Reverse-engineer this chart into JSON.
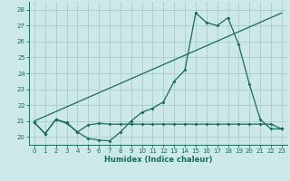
{
  "xlabel": "Humidex (Indice chaleur)",
  "xlim": [
    -0.5,
    23.5
  ],
  "ylim": [
    19.5,
    28.5
  ],
  "yticks": [
    20,
    21,
    22,
    23,
    24,
    25,
    26,
    27,
    28
  ],
  "xticks": [
    0,
    1,
    2,
    3,
    4,
    5,
    6,
    7,
    8,
    9,
    10,
    11,
    12,
    13,
    14,
    15,
    16,
    17,
    18,
    19,
    20,
    21,
    22,
    23
  ],
  "bg_color": "#cce8e8",
  "grid_color": "#aacccc",
  "line_color": "#1a6b5a",
  "line1_x": [
    0,
    1,
    2,
    3,
    4,
    5,
    6,
    7,
    8,
    9,
    10,
    11,
    12,
    13,
    14,
    15,
    16,
    17,
    18,
    19,
    20,
    21,
    22,
    23
  ],
  "line1_y": [
    20.9,
    20.2,
    21.1,
    20.9,
    20.3,
    19.9,
    19.8,
    19.75,
    20.3,
    21.0,
    21.55,
    21.8,
    22.2,
    23.5,
    24.2,
    27.8,
    27.2,
    27.0,
    27.5,
    25.8,
    23.3,
    21.1,
    20.5,
    20.5
  ],
  "line2_x": [
    0,
    1,
    2,
    3,
    4,
    5,
    6,
    7,
    8,
    9,
    10,
    11,
    12,
    13,
    14,
    15,
    16,
    17,
    18,
    19,
    20,
    21,
    22,
    23
  ],
  "line2_y": [
    20.9,
    20.2,
    21.1,
    20.85,
    20.3,
    20.75,
    20.85,
    20.8,
    20.8,
    20.8,
    20.8,
    20.8,
    20.8,
    20.8,
    20.8,
    20.8,
    20.8,
    20.8,
    20.8,
    20.8,
    20.8,
    20.8,
    20.8,
    20.5
  ],
  "line3_x": [
    0,
    23
  ],
  "line3_y": [
    21.0,
    27.8
  ]
}
